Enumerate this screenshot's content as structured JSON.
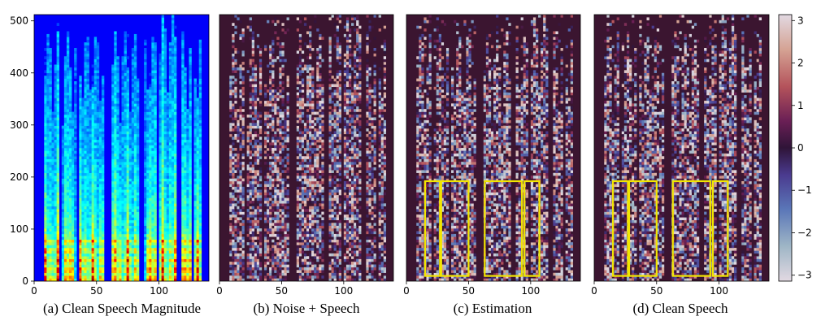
{
  "figure": {
    "captions": [
      "(a) Clean Speech Magnitude",
      "(b) Noise + Speech",
      "(c) Estimation",
      "(d) Clean Speech"
    ]
  },
  "chart_data": [
    {
      "type": "heatmap",
      "panel": "a",
      "caption": "(a) Clean Speech Magnitude",
      "xlim": [
        0,
        140
      ],
      "ylim": [
        0,
        512
      ],
      "xticks": [
        0,
        50,
        100
      ],
      "yticks": [
        0,
        100,
        200,
        300,
        400,
        500
      ],
      "colormap": "jet",
      "highlight_boxes": []
    },
    {
      "type": "heatmap",
      "panel": "b",
      "caption": "(b) Noise + Speech",
      "xlim": [
        0,
        140
      ],
      "ylim": [
        0,
        512
      ],
      "xticks": [
        0,
        50,
        100
      ],
      "yticks": [],
      "colormap": "twilight",
      "highlight_boxes": []
    },
    {
      "type": "heatmap",
      "panel": "c",
      "caption": "(c) Estimation",
      "xlim": [
        0,
        140
      ],
      "ylim": [
        0,
        512
      ],
      "xticks": [
        0,
        50,
        100
      ],
      "yticks": [],
      "colormap": "twilight",
      "highlight_boxes": [
        {
          "x0": 15,
          "x1": 27,
          "y0": 10,
          "y1": 192
        },
        {
          "x0": 28,
          "x1": 50,
          "y0": 10,
          "y1": 192
        },
        {
          "x0": 63,
          "x1": 93,
          "y0": 10,
          "y1": 192
        },
        {
          "x0": 95,
          "x1": 107,
          "y0": 10,
          "y1": 192
        }
      ]
    },
    {
      "type": "heatmap",
      "panel": "d",
      "caption": "(d) Clean Speech",
      "xlim": [
        0,
        140
      ],
      "ylim": [
        0,
        512
      ],
      "xticks": [
        0,
        50,
        100
      ],
      "yticks": [],
      "colormap": "twilight",
      "highlight_boxes": [
        {
          "x0": 15,
          "x1": 27,
          "y0": 10,
          "y1": 192
        },
        {
          "x0": 28,
          "x1": 50,
          "y0": 10,
          "y1": 192
        },
        {
          "x0": 63,
          "x1": 93,
          "y0": 10,
          "y1": 192
        },
        {
          "x0": 95,
          "x1": 107,
          "y0": 10,
          "y1": 192
        }
      ]
    }
  ],
  "colorbar": {
    "ticks": [
      3,
      2,
      1,
      0,
      -1,
      -2,
      -3
    ],
    "range": [
      -3.14,
      3.14
    ],
    "colormap": "twilight"
  },
  "colors": {
    "highlight": "#f2e600",
    "phase_background": "#3b1530"
  }
}
